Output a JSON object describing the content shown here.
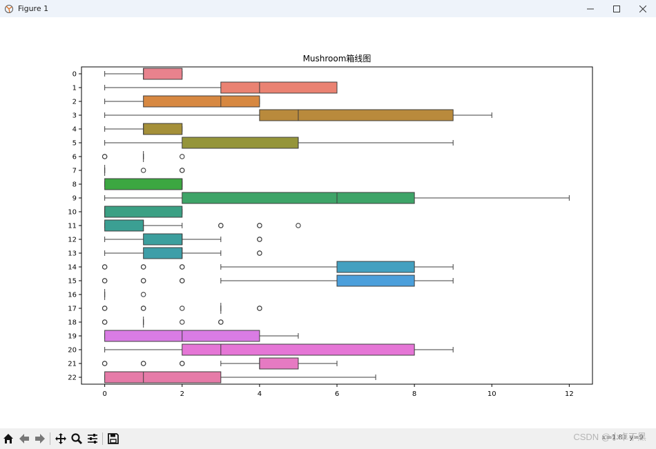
{
  "window": {
    "title": "Figure 1",
    "icons": {
      "app": "matplotlib-figure-icon",
      "minimize": "minimize-icon",
      "maximize": "maximize-icon",
      "close": "close-icon"
    }
  },
  "toolbar": {
    "buttons": [
      {
        "name": "home-button",
        "icon": "home-icon"
      },
      {
        "name": "back-button",
        "icon": "arrow-left-icon"
      },
      {
        "name": "forward-button",
        "icon": "arrow-right-icon"
      },
      {
        "name": "pan-button",
        "icon": "move-icon"
      },
      {
        "name": "zoom-button",
        "icon": "magnifier-icon"
      },
      {
        "name": "configure-subplots-button",
        "icon": "sliders-icon"
      },
      {
        "name": "save-button",
        "icon": "floppy-disk-icon"
      }
    ],
    "coords": "x=1.81  y=9",
    "watermark": "CSDN @小卓不黑"
  },
  "chart_data": {
    "type": "box",
    "orientation": "horizontal",
    "title": "Mushroom箱线图",
    "xlabel": "",
    "ylabel": "",
    "xlim": [
      -0.6,
      12.6
    ],
    "xticks": [
      0,
      2,
      4,
      6,
      8,
      10,
      12
    ],
    "categories": [
      "0",
      "1",
      "2",
      "3",
      "4",
      "5",
      "6",
      "7",
      "8",
      "9",
      "10",
      "11",
      "12",
      "13",
      "14",
      "15",
      "16",
      "17",
      "18",
      "19",
      "20",
      "21",
      "22"
    ],
    "boxes": [
      {
        "q1": 1,
        "median": 1,
        "q3": 2,
        "whisker_low": 0,
        "whisker_high": 2,
        "outliers": [],
        "color": "#e8828d"
      },
      {
        "q1": 3,
        "median": 4,
        "q3": 6,
        "whisker_low": 0,
        "whisker_high": 6,
        "outliers": [],
        "color": "#ea8272"
      },
      {
        "q1": 1,
        "median": 3,
        "q3": 4,
        "whisker_low": 0,
        "whisker_high": 4,
        "outliers": [],
        "color": "#d78841"
      },
      {
        "q1": 4,
        "median": 5,
        "q3": 9,
        "whisker_low": 0,
        "whisker_high": 10,
        "outliers": [],
        "color": "#b98a3c"
      },
      {
        "q1": 1,
        "median": 1,
        "q3": 2,
        "whisker_low": 0,
        "whisker_high": 2,
        "outliers": [],
        "color": "#a59039"
      },
      {
        "q1": 2,
        "median": 5,
        "q3": 5,
        "whisker_low": 0,
        "whisker_high": 9,
        "outliers": [],
        "color": "#95953a"
      },
      {
        "q1": 1,
        "median": 1,
        "q3": 1,
        "whisker_low": 1,
        "whisker_high": 1,
        "outliers": [
          0,
          0,
          2
        ],
        "color": "#7d9c3c"
      },
      {
        "q1": 0,
        "median": 0,
        "q3": 0,
        "whisker_low": 0,
        "whisker_high": 0,
        "outliers": [
          1,
          2,
          2
        ],
        "color": "#5ba33f"
      },
      {
        "q1": 0,
        "median": 2,
        "q3": 2,
        "whisker_low": 0,
        "whisker_high": 2,
        "outliers": [],
        "color": "#3ca741"
      },
      {
        "q1": 2,
        "median": 6,
        "q3": 8,
        "whisker_low": 0,
        "whisker_high": 12,
        "outliers": [],
        "color": "#3ea468"
      },
      {
        "q1": 0,
        "median": 0,
        "q3": 2,
        "whisker_low": 0,
        "whisker_high": 2,
        "outliers": [],
        "color": "#3ba084"
      },
      {
        "q1": 0,
        "median": 1,
        "q3": 1,
        "whisker_low": 0,
        "whisker_high": 2,
        "outliers": [
          3,
          3,
          4,
          4,
          5
        ],
        "color": "#3b9f93"
      },
      {
        "q1": 1,
        "median": 2,
        "q3": 2,
        "whisker_low": 0,
        "whisker_high": 3,
        "outliers": [
          4,
          4
        ],
        "color": "#3c9f9e"
      },
      {
        "q1": 1,
        "median": 2,
        "q3": 2,
        "whisker_low": 0,
        "whisker_high": 3,
        "outliers": [
          4,
          4
        ],
        "color": "#3e9ea8"
      },
      {
        "q1": 6,
        "median": 6,
        "q3": 8,
        "whisker_low": 3,
        "whisker_high": 9,
        "outliers": [
          0,
          0,
          1,
          1,
          2,
          2
        ],
        "color": "#43a0c0"
      },
      {
        "q1": 6,
        "median": 6,
        "q3": 8,
        "whisker_low": 3,
        "whisker_high": 9,
        "outliers": [
          0,
          0,
          1,
          1,
          2,
          2
        ],
        "color": "#4b9fdb"
      },
      {
        "q1": 0,
        "median": 0,
        "q3": 0,
        "whisker_low": 0,
        "whisker_high": 0,
        "outliers": [
          1
        ],
        "color": "#8d96e8"
      },
      {
        "q1": 3,
        "median": 3,
        "q3": 3,
        "whisker_low": 3,
        "whisker_high": 3,
        "outliers": [
          0,
          0,
          1,
          1,
          2,
          4,
          4
        ],
        "color": "#b08ae8"
      },
      {
        "q1": 1,
        "median": 1,
        "q3": 1,
        "whisker_low": 1,
        "whisker_high": 1,
        "outliers": [
          0,
          0,
          2,
          3,
          3
        ],
        "color": "#c87fe5"
      },
      {
        "q1": 0,
        "median": 2,
        "q3": 4,
        "whisker_low": 0,
        "whisker_high": 5,
        "outliers": [],
        "color": "#d97ce4"
      },
      {
        "q1": 2,
        "median": 3,
        "q3": 8,
        "whisker_low": 0,
        "whisker_high": 9,
        "outliers": [],
        "color": "#e576d6"
      },
      {
        "q1": 4,
        "median": 4,
        "q3": 5,
        "whisker_low": 3,
        "whisker_high": 6,
        "outliers": [
          0,
          0,
          1,
          1,
          2,
          2
        ],
        "color": "#e67ac2"
      },
      {
        "q1": 0,
        "median": 1,
        "q3": 3,
        "whisker_low": 0,
        "whisker_high": 7,
        "outliers": [],
        "color": "#e67ba8"
      }
    ]
  }
}
